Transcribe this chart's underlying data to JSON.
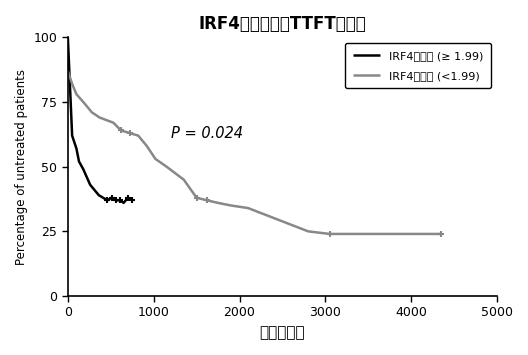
{
  "title": "IRF4表达水平对TTFT的影响",
  "xlabel": "时间（天）",
  "ylabel": "Percentage of untreated patients",
  "xlim": [
    0,
    5000
  ],
  "ylim": [
    0,
    100
  ],
  "xticks": [
    0,
    1000,
    2000,
    3000,
    4000,
    5000
  ],
  "yticks": [
    0,
    25,
    50,
    75,
    100
  ],
  "p_value_text": "P = 0.024",
  "p_value_x": 1200,
  "p_value_y": 61,
  "legend_label_high": "IRF4高表达 (≥ 1.99)",
  "legend_label_low": "IRF4低表达 (<1.99)",
  "color_high": "#000000",
  "color_low": "#888888",
  "high_x": [
    0,
    0,
    50,
    50,
    100,
    100,
    130,
    130,
    180,
    180,
    220,
    220,
    260,
    260,
    310,
    310,
    360,
    360,
    410,
    410,
    460,
    460,
    510,
    510,
    560,
    560,
    610,
    610,
    650,
    650,
    700,
    700,
    750,
    750
  ],
  "high_y": [
    100,
    100,
    62,
    62,
    57,
    57,
    52,
    52,
    49,
    49,
    46,
    46,
    43,
    43,
    41,
    41,
    39,
    39,
    38,
    38,
    37,
    37,
    38,
    38,
    37,
    37,
    37,
    37,
    36,
    36,
    38,
    38,
    37,
    37
  ],
  "low_x": [
    0,
    0,
    50,
    50,
    100,
    100,
    180,
    180,
    280,
    280,
    370,
    370,
    450,
    450,
    530,
    530,
    620,
    620,
    720,
    720,
    820,
    820,
    920,
    920,
    1020,
    1020,
    1150,
    1150,
    1350,
    1350,
    1500,
    1500,
    1620,
    1620,
    1750,
    1750,
    1900,
    1900,
    2100,
    2100,
    2800,
    2800,
    3050,
    3050,
    4350,
    4350
  ],
  "low_y": [
    87,
    87,
    82,
    82,
    78,
    78,
    75,
    75,
    71,
    71,
    69,
    69,
    68,
    68,
    67,
    67,
    64,
    64,
    63,
    63,
    62,
    62,
    58,
    58,
    53,
    53,
    50,
    50,
    45,
    45,
    38,
    38,
    37,
    37,
    36,
    36,
    35,
    35,
    34,
    34,
    25,
    25,
    24,
    24,
    24,
    24
  ],
  "high_censors_x": [
    460,
    510,
    560,
    610,
    700,
    750
  ],
  "high_censors_y": [
    37,
    38,
    37,
    37,
    38,
    37
  ],
  "low_censors_x": [
    620,
    720,
    1500,
    1620,
    3050,
    4350
  ],
  "low_censors_y": [
    64,
    63,
    38,
    37,
    24,
    24
  ],
  "linewidth": 1.8,
  "background_color": "#ffffff"
}
